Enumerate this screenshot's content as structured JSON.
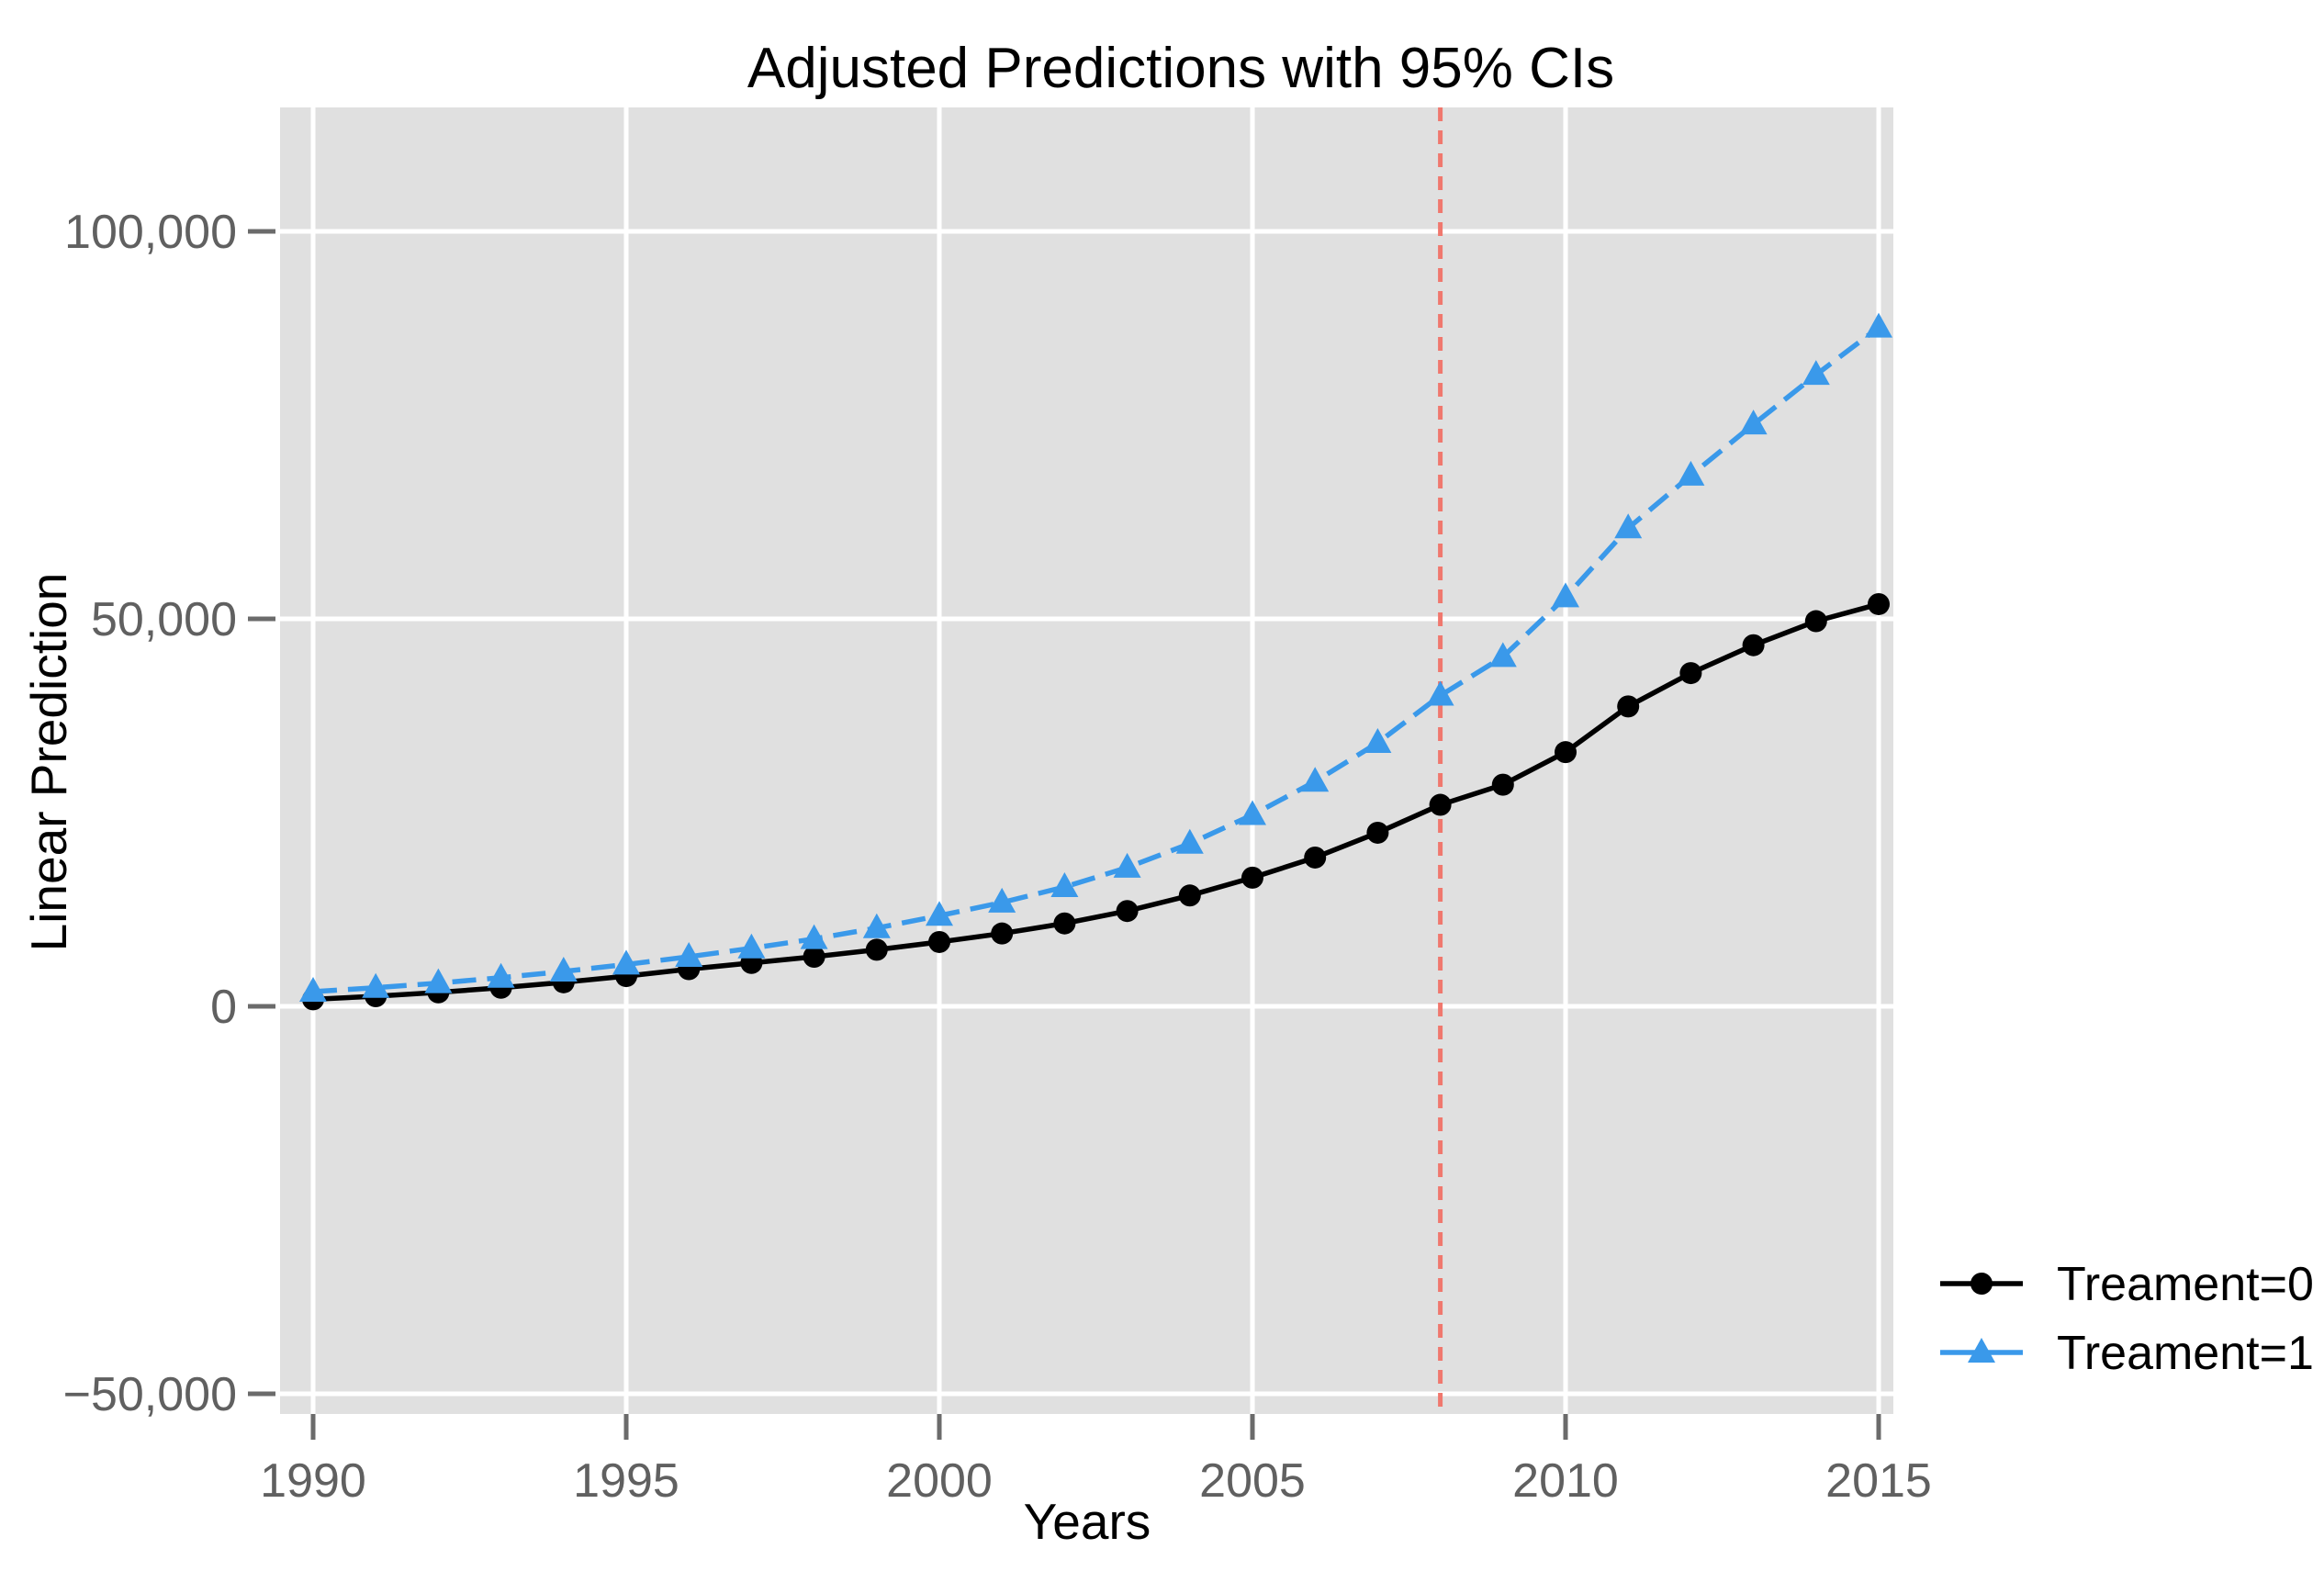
{
  "figure": {
    "background": "#FFFFFF"
  },
  "chart_data": {
    "type": "line",
    "title": "Adjusted Predictions with 95% CIs",
    "xlabel": "Years",
    "ylabel": "Linear Prediction",
    "x": [
      1990,
      1991,
      1992,
      1993,
      1994,
      1995,
      1996,
      1997,
      1998,
      1999,
      2000,
      2001,
      2002,
      2003,
      2004,
      2005,
      2006,
      2007,
      2008,
      2009,
      2010,
      2011,
      2012,
      2013,
      2014,
      2015
    ],
    "series": [
      {
        "name": "Treament=0",
        "color": "#000000",
        "marker": "circle",
        "line_style": "solid",
        "values": [
          900,
          1300,
          1800,
          2400,
          3100,
          3900,
          4800,
          5600,
          6400,
          7300,
          8300,
          9400,
          10700,
          12300,
          14300,
          16600,
          19200,
          22400,
          26000,
          28600,
          32800,
          38700,
          43000,
          46600,
          49700,
          51900
        ]
      },
      {
        "name": "Treament=1",
        "color": "#3A99EA",
        "marker": "triangle",
        "line_style": "dashed",
        "values": [
          1900,
          2400,
          3000,
          3700,
          4500,
          5400,
          6400,
          7500,
          8700,
          10100,
          11700,
          13400,
          15400,
          17900,
          21000,
          24700,
          29000,
          34000,
          40100,
          45100,
          52800,
          61700,
          68500,
          75100,
          81500,
          87600
        ]
      }
    ],
    "reference_line": {
      "axis": "x",
      "value": 2008,
      "color": "#F0786E",
      "style": "dashed"
    },
    "x_ticks": {
      "values": [
        1990,
        1995,
        2000,
        2005,
        2010,
        2015
      ],
      "labels": [
        "1990",
        "1995",
        "2000",
        "2005",
        "2010",
        "2015"
      ]
    },
    "y_ticks": {
      "values": [
        -50000,
        0,
        50000,
        100000
      ],
      "labels": [
        "−50,000",
        "0",
        "50,000",
        "100,000"
      ]
    },
    "xlim": [
      1989.47,
      2015.24
    ],
    "ylim": [
      -52600,
      116000
    ],
    "grid": true,
    "legend_position": "outside-right-bottom",
    "panel_color": "#E0E0E0",
    "gridline_color": "#FFFFFF",
    "tick_color": "#6B6B6B",
    "tick_label_color": "#606060"
  }
}
